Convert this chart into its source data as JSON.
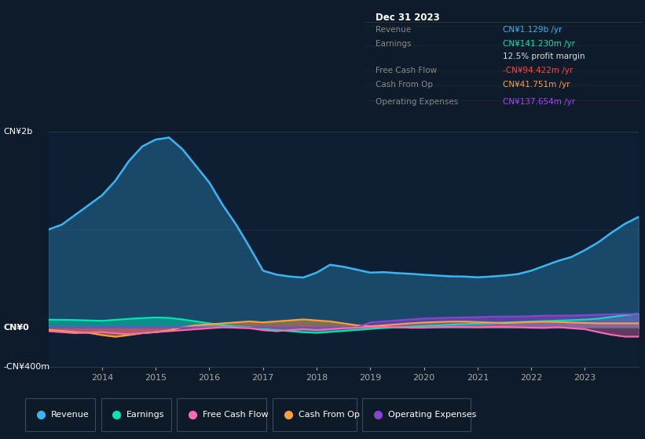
{
  "background_color": "#0d1b2a",
  "plot_bg_color": "#0f1f33",
  "border_color": "#1a2940",
  "series_colors": {
    "revenue": "#3ab4f2",
    "earnings": "#00e5b4",
    "free_cash_flow": "#ff69b4",
    "cash_from_op": "#ffa040",
    "operating_expenses": "#8844cc"
  },
  "legend": [
    {
      "label": "Revenue",
      "color": "#3ab4f2"
    },
    {
      "label": "Earnings",
      "color": "#00e5b4"
    },
    {
      "label": "Free Cash Flow",
      "color": "#ff69b4"
    },
    {
      "label": "Cash From Op",
      "color": "#ffa040"
    },
    {
      "label": "Operating Expenses",
      "color": "#8844cc"
    }
  ],
  "title_box": {
    "date": "Dec 31 2023",
    "label_color": "#888888",
    "box_bg": "#000000",
    "border_color": "#333333",
    "rows": [
      {
        "label": "Revenue",
        "value": "CN¥1.129b /yr",
        "value_color": "#3ab4f2"
      },
      {
        "label": "Earnings",
        "value": "CN¥141.230m /yr",
        "value_color": "#00e5b4"
      },
      {
        "label": "",
        "value": "12.5% profit margin",
        "value_color": "#dddddd"
      },
      {
        "label": "Free Cash Flow",
        "value": "-CN¥94.422m /yr",
        "value_color": "#ff4444"
      },
      {
        "label": "Cash From Op",
        "value": "CN¥41.751m /yr",
        "value_color": "#ffa040"
      },
      {
        "label": "Operating Expenses",
        "value": "CN¥137.654m /yr",
        "value_color": "#aa44ff"
      }
    ]
  },
  "years": [
    2013.0,
    2013.25,
    2013.5,
    2013.75,
    2014.0,
    2014.25,
    2014.5,
    2014.75,
    2015.0,
    2015.25,
    2015.5,
    2015.75,
    2016.0,
    2016.25,
    2016.5,
    2016.75,
    2017.0,
    2017.25,
    2017.5,
    2017.75,
    2018.0,
    2018.25,
    2018.5,
    2018.75,
    2019.0,
    2019.25,
    2019.5,
    2019.75,
    2020.0,
    2020.25,
    2020.5,
    2020.75,
    2021.0,
    2021.25,
    2021.5,
    2021.75,
    2022.0,
    2022.25,
    2022.5,
    2022.75,
    2023.0,
    2023.25,
    2023.5,
    2023.75,
    2024.0
  ],
  "revenue": [
    1000,
    1050,
    1150,
    1250,
    1350,
    1500,
    1700,
    1850,
    1920,
    1940,
    1820,
    1650,
    1480,
    1250,
    1050,
    820,
    580,
    540,
    520,
    510,
    560,
    640,
    620,
    590,
    560,
    565,
    555,
    548,
    538,
    530,
    522,
    520,
    512,
    520,
    530,
    545,
    580,
    630,
    680,
    720,
    790,
    870,
    970,
    1060,
    1129
  ],
  "earnings": [
    80,
    78,
    76,
    72,
    68,
    78,
    88,
    96,
    102,
    98,
    82,
    62,
    42,
    22,
    10,
    4,
    -15,
    -28,
    -38,
    -48,
    -55,
    -45,
    -35,
    -25,
    -15,
    -5,
    2,
    8,
    15,
    20,
    28,
    34,
    40,
    44,
    50,
    55,
    60,
    65,
    70,
    75,
    80,
    90,
    108,
    125,
    141
  ],
  "free_cash_flow": [
    -38,
    -48,
    -58,
    -52,
    -48,
    -60,
    -68,
    -58,
    -48,
    -38,
    -28,
    -18,
    -8,
    2,
    -3,
    -8,
    -28,
    -38,
    -28,
    -18,
    -28,
    -18,
    -8,
    -3,
    2,
    5,
    2,
    -3,
    -3,
    2,
    5,
    5,
    2,
    5,
    5,
    2,
    -3,
    -5,
    2,
    -8,
    -18,
    -48,
    -75,
    -94,
    -94
  ],
  "cash_from_op": [
    -25,
    -35,
    -48,
    -55,
    -78,
    -95,
    -78,
    -58,
    -48,
    -28,
    2,
    22,
    32,
    42,
    52,
    62,
    52,
    62,
    72,
    82,
    72,
    62,
    42,
    22,
    12,
    22,
    32,
    42,
    50,
    55,
    60,
    60,
    55,
    50,
    45,
    50,
    55,
    58,
    55,
    50,
    46,
    42,
    42,
    42,
    42
  ],
  "operating_expenses": [
    0,
    0,
    0,
    0,
    0,
    0,
    0,
    0,
    0,
    0,
    0,
    0,
    0,
    0,
    0,
    0,
    0,
    0,
    0,
    0,
    0,
    0,
    0,
    0,
    52,
    62,
    72,
    82,
    92,
    96,
    100,
    102,
    106,
    110,
    112,
    112,
    116,
    120,
    122,
    122,
    126,
    130,
    135,
    137,
    138
  ],
  "ylim": [
    -400,
    2000
  ],
  "xlim": [
    2013.0,
    2024.0
  ],
  "ytick_positions": [
    -400,
    0,
    2000
  ],
  "ytick_labels": [
    "-CN¥400m",
    "CN¥0",
    "CN¥2b"
  ],
  "xtick_positions": [
    2014,
    2015,
    2016,
    2017,
    2018,
    2019,
    2020,
    2021,
    2022,
    2023
  ],
  "zero_line_color": "#556677",
  "top_line_color": "#2a3a4a",
  "mid_line_color": "#1e2e3e"
}
